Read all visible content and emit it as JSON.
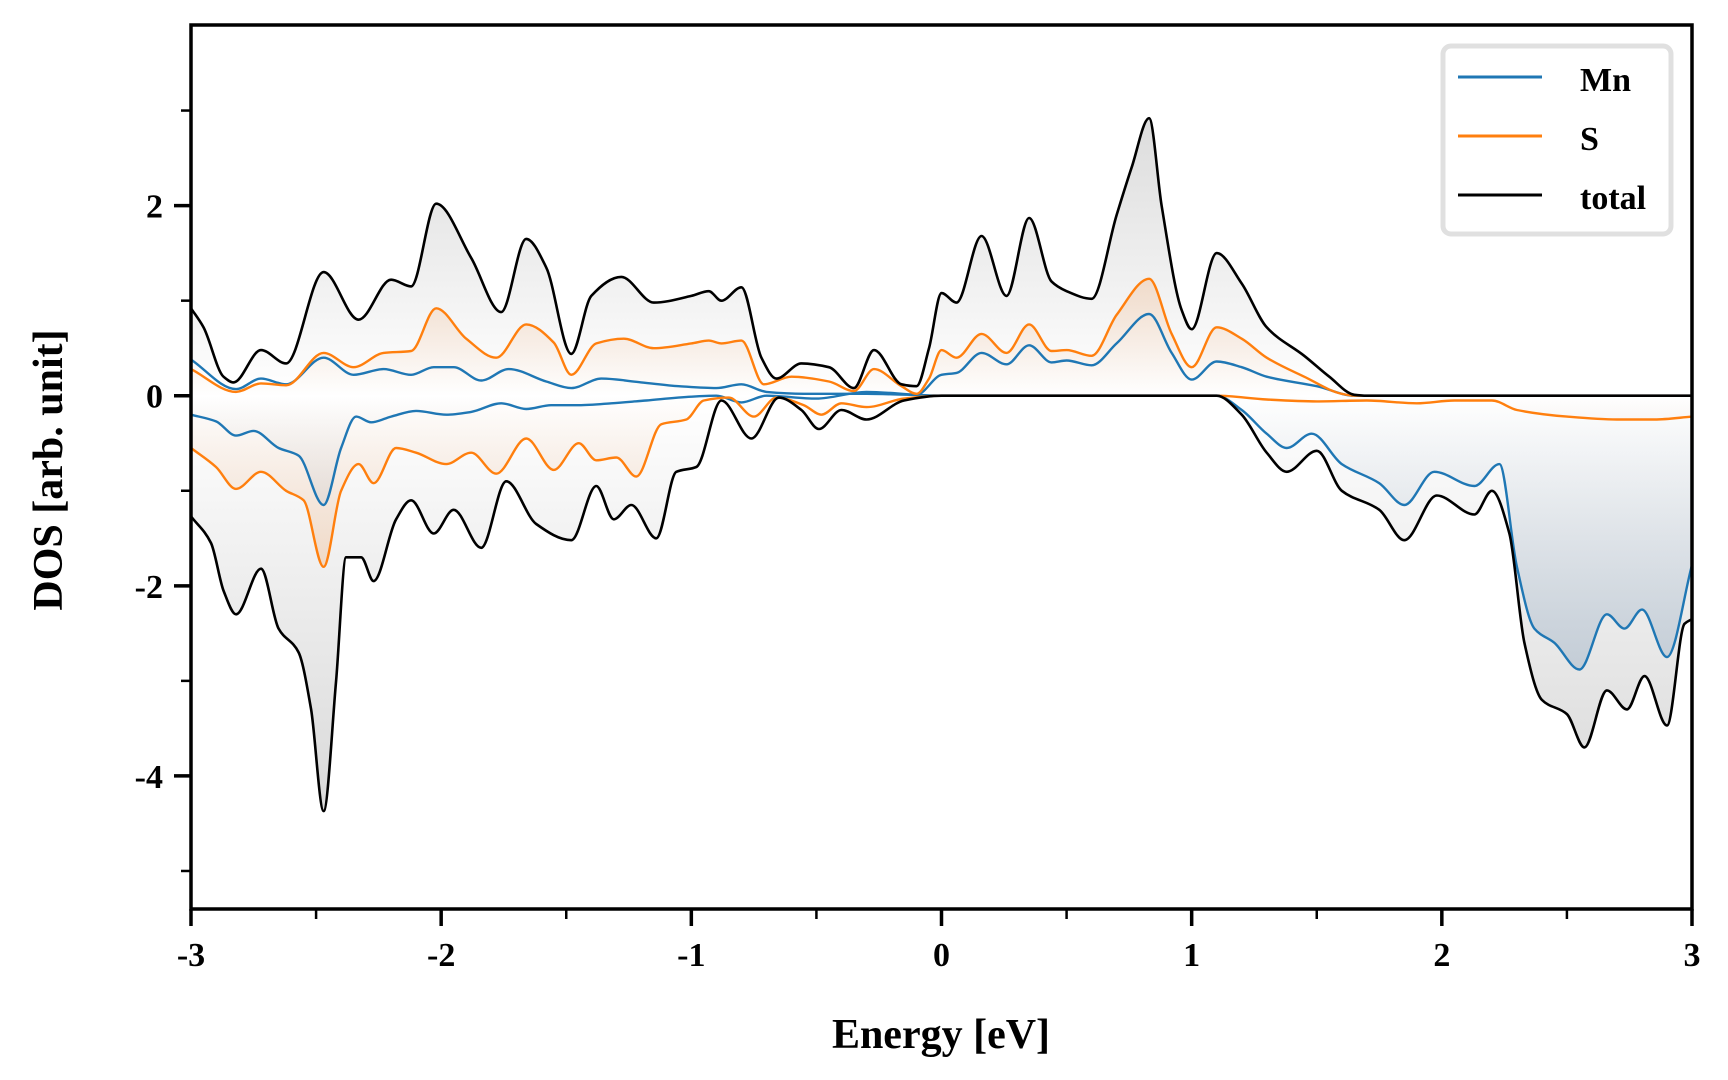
{
  "chart_data": {
    "type": "line",
    "title": "",
    "xlabel": "Energy [eV]",
    "ylabel": "DOS [arb. unit]",
    "xlim": [
      -3,
      3
    ],
    "ylim": [
      -5.4,
      3.9
    ],
    "x_ticks": [
      -3,
      -2,
      -1,
      0,
      1,
      2,
      3
    ],
    "x_tick_labels": [
      "-3",
      "-2",
      "-1",
      "0",
      "1",
      "2",
      "3"
    ],
    "x_minor_ticks": [
      -2.5,
      -1.5,
      -0.5,
      0.5,
      1.5,
      2.5
    ],
    "y_ticks": [
      -4,
      -2,
      0,
      2
    ],
    "y_tick_labels": [
      "-4",
      "-2",
      "0",
      "2"
    ],
    "y_minor_ticks": [
      -5,
      -3,
      -1,
      1,
      3
    ],
    "grid": false,
    "legend_position": "top-right",
    "series": [
      {
        "name": "Mn",
        "color": "#1f77b4",
        "fill_color": "#6f8fb0",
        "spin_up": [
          [
            -3,
            0.38
          ],
          [
            -2.82,
            0.07
          ],
          [
            -2.72,
            0.18
          ],
          [
            -2.62,
            0.12
          ],
          [
            -2.47,
            0.4
          ],
          [
            -2.35,
            0.22
          ],
          [
            -2.23,
            0.28
          ],
          [
            -2.12,
            0.22
          ],
          [
            -2.03,
            0.3
          ],
          [
            -1.95,
            0.3
          ],
          [
            -1.84,
            0.16
          ],
          [
            -1.73,
            0.28
          ],
          [
            -1.58,
            0.15
          ],
          [
            -1.48,
            0.08
          ],
          [
            -1.36,
            0.18
          ],
          [
            -1.2,
            0.14
          ],
          [
            -1.05,
            0.1
          ],
          [
            -0.9,
            0.08
          ],
          [
            -0.8,
            0.12
          ],
          [
            -0.7,
            0.04
          ],
          [
            -0.55,
            0.02
          ],
          [
            -0.3,
            0.02
          ],
          [
            -0.1,
            0.01
          ],
          [
            0,
            0.22
          ],
          [
            0.06,
            0.24
          ],
          [
            0.16,
            0.45
          ],
          [
            0.26,
            0.33
          ],
          [
            0.35,
            0.53
          ],
          [
            0.44,
            0.35
          ],
          [
            0.5,
            0.37
          ],
          [
            0.6,
            0.32
          ],
          [
            0.7,
            0.55
          ],
          [
            0.83,
            0.86
          ],
          [
            0.92,
            0.45
          ],
          [
            1.0,
            0.17
          ],
          [
            1.1,
            0.36
          ],
          [
            1.2,
            0.3
          ],
          [
            1.3,
            0.2
          ],
          [
            1.5,
            0.1
          ],
          [
            1.65,
            0
          ],
          [
            3,
            0
          ]
        ],
        "spin_down": [
          [
            -3,
            -0.2
          ],
          [
            -2.9,
            -0.27
          ],
          [
            -2.82,
            -0.42
          ],
          [
            -2.75,
            -0.37
          ],
          [
            -2.65,
            -0.55
          ],
          [
            -2.57,
            -0.63
          ],
          [
            -2.47,
            -1.15
          ],
          [
            -2.4,
            -0.55
          ],
          [
            -2.34,
            -0.22
          ],
          [
            -2.28,
            -0.28
          ],
          [
            -2.2,
            -0.22
          ],
          [
            -2.1,
            -0.16
          ],
          [
            -1.98,
            -0.2
          ],
          [
            -1.88,
            -0.17
          ],
          [
            -1.76,
            -0.08
          ],
          [
            -1.66,
            -0.14
          ],
          [
            -1.56,
            -0.1
          ],
          [
            -1.45,
            -0.1
          ],
          [
            -1.32,
            -0.08
          ],
          [
            -1.18,
            -0.05
          ],
          [
            -1.0,
            -0.01
          ],
          [
            -0.9,
            0.0
          ],
          [
            -0.8,
            -0.07
          ],
          [
            -0.7,
            0
          ],
          [
            -0.5,
            -0.03
          ],
          [
            -0.3,
            0.04
          ],
          [
            -0.1,
            0.01
          ],
          [
            0,
            0
          ],
          [
            1.1,
            0
          ],
          [
            1.2,
            -0.15
          ],
          [
            1.3,
            -0.4
          ],
          [
            1.38,
            -0.55
          ],
          [
            1.48,
            -0.4
          ],
          [
            1.6,
            -0.72
          ],
          [
            1.75,
            -0.92
          ],
          [
            1.85,
            -1.15
          ],
          [
            1.97,
            -0.8
          ],
          [
            2.13,
            -0.95
          ],
          [
            2.23,
            -0.72
          ],
          [
            2.3,
            -1.8
          ],
          [
            2.37,
            -2.45
          ],
          [
            2.45,
            -2.6
          ],
          [
            2.55,
            -2.88
          ],
          [
            2.66,
            -2.3
          ],
          [
            2.73,
            -2.45
          ],
          [
            2.8,
            -2.25
          ],
          [
            2.9,
            -2.75
          ],
          [
            3,
            -1.78
          ]
        ]
      },
      {
        "name": "S",
        "color": "#ff7f0e",
        "fill_color": "#f0a060",
        "spin_up": [
          [
            -3,
            0.28
          ],
          [
            -2.82,
            0.04
          ],
          [
            -2.72,
            0.13
          ],
          [
            -2.62,
            0.11
          ],
          [
            -2.47,
            0.45
          ],
          [
            -2.35,
            0.3
          ],
          [
            -2.23,
            0.45
          ],
          [
            -2.12,
            0.47
          ],
          [
            -2.02,
            0.92
          ],
          [
            -1.9,
            0.6
          ],
          [
            -1.78,
            0.4
          ],
          [
            -1.66,
            0.75
          ],
          [
            -1.55,
            0.56
          ],
          [
            -1.48,
            0.22
          ],
          [
            -1.38,
            0.55
          ],
          [
            -1.27,
            0.6
          ],
          [
            -1.15,
            0.5
          ],
          [
            -1.0,
            0.55
          ],
          [
            -0.93,
            0.58
          ],
          [
            -0.88,
            0.55
          ],
          [
            -0.8,
            0.58
          ],
          [
            -0.71,
            0.12
          ],
          [
            -0.6,
            0.2
          ],
          [
            -0.45,
            0.15
          ],
          [
            -0.35,
            0.05
          ],
          [
            -0.27,
            0.28
          ],
          [
            -0.16,
            0.1
          ],
          [
            -0.1,
            0.02
          ],
          [
            -0.05,
            0.18
          ],
          [
            0,
            0.48
          ],
          [
            0.06,
            0.4
          ],
          [
            0.16,
            0.65
          ],
          [
            0.26,
            0.45
          ],
          [
            0.35,
            0.75
          ],
          [
            0.44,
            0.47
          ],
          [
            0.5,
            0.48
          ],
          [
            0.6,
            0.42
          ],
          [
            0.7,
            0.85
          ],
          [
            0.83,
            1.23
          ],
          [
            0.92,
            0.65
          ],
          [
            1.0,
            0.3
          ],
          [
            1.1,
            0.72
          ],
          [
            1.2,
            0.6
          ],
          [
            1.3,
            0.4
          ],
          [
            1.45,
            0.2
          ],
          [
            1.6,
            0.02
          ],
          [
            1.65,
            0
          ],
          [
            3,
            0
          ]
        ],
        "spin_down": [
          [
            -3,
            -0.55
          ],
          [
            -2.9,
            -0.75
          ],
          [
            -2.82,
            -0.98
          ],
          [
            -2.72,
            -0.8
          ],
          [
            -2.62,
            -1.0
          ],
          [
            -2.55,
            -1.1
          ],
          [
            -2.47,
            -1.8
          ],
          [
            -2.4,
            -1.0
          ],
          [
            -2.33,
            -0.72
          ],
          [
            -2.27,
            -0.92
          ],
          [
            -2.18,
            -0.55
          ],
          [
            -2.1,
            -0.6
          ],
          [
            -1.98,
            -0.72
          ],
          [
            -1.88,
            -0.6
          ],
          [
            -1.78,
            -0.82
          ],
          [
            -1.66,
            -0.45
          ],
          [
            -1.55,
            -0.78
          ],
          [
            -1.45,
            -0.5
          ],
          [
            -1.38,
            -0.68
          ],
          [
            -1.3,
            -0.65
          ],
          [
            -1.22,
            -0.85
          ],
          [
            -1.12,
            -0.3
          ],
          [
            -1.02,
            -0.25
          ],
          [
            -0.95,
            -0.05
          ],
          [
            -0.85,
            -0.02
          ],
          [
            -0.75,
            -0.22
          ],
          [
            -0.66,
            -0.02
          ],
          [
            -0.55,
            -0.1
          ],
          [
            -0.48,
            -0.2
          ],
          [
            -0.4,
            -0.08
          ],
          [
            -0.3,
            -0.12
          ],
          [
            -0.15,
            -0.03
          ],
          [
            0,
            0
          ],
          [
            1.1,
            0
          ],
          [
            1.3,
            -0.04
          ],
          [
            1.5,
            -0.06
          ],
          [
            1.7,
            -0.05
          ],
          [
            1.9,
            -0.08
          ],
          [
            2.05,
            -0.05
          ],
          [
            2.2,
            -0.05
          ],
          [
            2.3,
            -0.15
          ],
          [
            2.5,
            -0.22
          ],
          [
            2.7,
            -0.25
          ],
          [
            2.85,
            -0.25
          ],
          [
            3,
            -0.22
          ]
        ]
      },
      {
        "name": "total",
        "color": "#000000",
        "fill_color": "#c8c8c8",
        "spin_up": [
          [
            -3,
            0.92
          ],
          [
            -2.95,
            0.72
          ],
          [
            -2.87,
            0.2
          ],
          [
            -2.83,
            0.14
          ],
          [
            -2.72,
            0.48
          ],
          [
            -2.62,
            0.34
          ],
          [
            -2.47,
            1.3
          ],
          [
            -2.33,
            0.8
          ],
          [
            -2.2,
            1.22
          ],
          [
            -2.12,
            1.15
          ],
          [
            -2.02,
            2.02
          ],
          [
            -1.88,
            1.45
          ],
          [
            -1.76,
            0.88
          ],
          [
            -1.66,
            1.65
          ],
          [
            -1.58,
            1.35
          ],
          [
            -1.48,
            0.44
          ],
          [
            -1.4,
            1.05
          ],
          [
            -1.28,
            1.25
          ],
          [
            -1.15,
            0.98
          ],
          [
            -1.0,
            1.05
          ],
          [
            -0.93,
            1.1
          ],
          [
            -0.88,
            1.0
          ],
          [
            -0.8,
            1.14
          ],
          [
            -0.72,
            0.4
          ],
          [
            -0.66,
            0.18
          ],
          [
            -0.56,
            0.34
          ],
          [
            -0.45,
            0.3
          ],
          [
            -0.35,
            0.08
          ],
          [
            -0.27,
            0.48
          ],
          [
            -0.16,
            0.12
          ],
          [
            -0.1,
            0.1
          ],
          [
            -0.05,
            0.5
          ],
          [
            0,
            1.08
          ],
          [
            0.06,
            0.98
          ],
          [
            0.16,
            1.68
          ],
          [
            0.26,
            1.05
          ],
          [
            0.35,
            1.87
          ],
          [
            0.44,
            1.2
          ],
          [
            0.5,
            1.1
          ],
          [
            0.6,
            1.02
          ],
          [
            0.7,
            1.9
          ],
          [
            0.76,
            2.4
          ],
          [
            0.83,
            2.92
          ],
          [
            0.88,
            2.0
          ],
          [
            0.96,
            0.9
          ],
          [
            1.0,
            0.7
          ],
          [
            1.1,
            1.5
          ],
          [
            1.2,
            1.18
          ],
          [
            1.3,
            0.72
          ],
          [
            1.45,
            0.42
          ],
          [
            1.55,
            0.2
          ],
          [
            1.65,
            0.01
          ],
          [
            1.7,
            0
          ],
          [
            3,
            0
          ]
        ],
        "spin_down": [
          [
            -3,
            -1.27
          ],
          [
            -2.92,
            -1.55
          ],
          [
            -2.87,
            -2.05
          ],
          [
            -2.82,
            -2.3
          ],
          [
            -2.72,
            -1.82
          ],
          [
            -2.65,
            -2.45
          ],
          [
            -2.57,
            -2.7
          ],
          [
            -2.52,
            -3.3
          ],
          [
            -2.47,
            -4.37
          ],
          [
            -2.42,
            -3.0
          ],
          [
            -2.38,
            -1.7
          ],
          [
            -2.32,
            -1.7
          ],
          [
            -2.27,
            -1.95
          ],
          [
            -2.18,
            -1.3
          ],
          [
            -2.12,
            -1.1
          ],
          [
            -2.03,
            -1.45
          ],
          [
            -1.95,
            -1.2
          ],
          [
            -1.84,
            -1.6
          ],
          [
            -1.74,
            -0.9
          ],
          [
            -1.62,
            -1.35
          ],
          [
            -1.48,
            -1.52
          ],
          [
            -1.38,
            -0.95
          ],
          [
            -1.31,
            -1.3
          ],
          [
            -1.24,
            -1.15
          ],
          [
            -1.14,
            -1.5
          ],
          [
            -1.06,
            -0.8
          ],
          [
            -0.98,
            -0.75
          ],
          [
            -0.88,
            -0.05
          ],
          [
            -0.76,
            -0.45
          ],
          [
            -0.65,
            -0.02
          ],
          [
            -0.56,
            -0.15
          ],
          [
            -0.49,
            -0.35
          ],
          [
            -0.4,
            -0.15
          ],
          [
            -0.3,
            -0.25
          ],
          [
            -0.15,
            -0.05
          ],
          [
            0,
            0
          ],
          [
            1.1,
            0
          ],
          [
            1.2,
            -0.2
          ],
          [
            1.3,
            -0.6
          ],
          [
            1.38,
            -0.8
          ],
          [
            1.5,
            -0.58
          ],
          [
            1.6,
            -1.0
          ],
          [
            1.75,
            -1.2
          ],
          [
            1.85,
            -1.52
          ],
          [
            1.98,
            -1.05
          ],
          [
            2.13,
            -1.25
          ],
          [
            2.2,
            -1.0
          ],
          [
            2.27,
            -1.45
          ],
          [
            2.33,
            -2.6
          ],
          [
            2.4,
            -3.2
          ],
          [
            2.5,
            -3.35
          ],
          [
            2.57,
            -3.7
          ],
          [
            2.66,
            -3.1
          ],
          [
            2.74,
            -3.3
          ],
          [
            2.81,
            -2.95
          ],
          [
            2.9,
            -3.47
          ],
          [
            2.97,
            -2.4
          ],
          [
            3,
            -2.35
          ]
        ]
      }
    ]
  }
}
